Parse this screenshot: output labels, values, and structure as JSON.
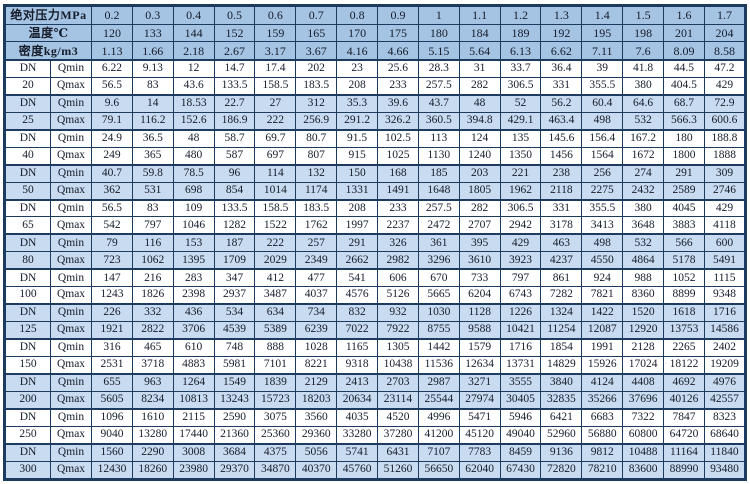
{
  "colors": {
    "header_bg": "#a5c3e2",
    "stripe_bg": "#c9dbf0",
    "row_bg": "#ffffff",
    "border": "#1d3a5f",
    "text": "#151d2c"
  },
  "chart_data": {
    "type": "table",
    "dn_prefix": "DN",
    "qmin_label": "Qmin",
    "qmax_label": "Qmax",
    "header_rows": [
      {
        "label": "绝对压力MPa",
        "values": [
          "0.2",
          "0.3",
          "0.4",
          "0.5",
          "0.6",
          "0.7",
          "0.8",
          "0.9",
          "1",
          "1.1",
          "1.2",
          "1.3",
          "1.4",
          "1.5",
          "1.6",
          "1.7"
        ]
      },
      {
        "label": "温度℃",
        "values": [
          "120",
          "133",
          "144",
          "152",
          "159",
          "165",
          "170",
          "175",
          "180",
          "184",
          "189",
          "192",
          "195",
          "198",
          "201",
          "204"
        ]
      },
      {
        "label": "密度kg/m3",
        "values": [
          "1.13",
          "1.66",
          "2.18",
          "2.67",
          "3.17",
          "3.67",
          "4.16",
          "4.66",
          "5.15",
          "5.64",
          "6.13",
          "6.62",
          "7.11",
          "7.6",
          "8.09",
          "8.58"
        ]
      }
    ],
    "row_groups": [
      {
        "dn": "20",
        "qmin": [
          "6.22",
          "9.13",
          "12",
          "14.7",
          "17.4",
          "202",
          "23",
          "25.6",
          "28.3",
          "31",
          "33.7",
          "36.4",
          "39",
          "41.8",
          "44.5",
          "47.2"
        ],
        "qmax": [
          "56.5",
          "83",
          "43.6",
          "133.5",
          "158.5",
          "183.5",
          "208",
          "233",
          "257.5",
          "282",
          "306.5",
          "331",
          "355.5",
          "380",
          "404.5",
          "429"
        ]
      },
      {
        "dn": "25",
        "qmin": [
          "9.6",
          "14",
          "18.53",
          "22.7",
          "27",
          "312",
          "35.3",
          "39.6",
          "43.7",
          "48",
          "52",
          "56.2",
          "60.4",
          "64.6",
          "68.7",
          "72.9"
        ],
        "qmax": [
          "79.1",
          "116.2",
          "152.6",
          "186.9",
          "222",
          "256.9",
          "291.2",
          "326.2",
          "360.5",
          "394.8",
          "429.1",
          "463.4",
          "498",
          "532",
          "566.3",
          "600.6"
        ]
      },
      {
        "dn": "40",
        "qmin": [
          "24.9",
          "36.5",
          "48",
          "58.7",
          "69.7",
          "80.7",
          "91.5",
          "102.5",
          "113",
          "124",
          "135",
          "145.6",
          "156.4",
          "167.2",
          "180",
          "188.8"
        ],
        "qmax": [
          "249",
          "365",
          "480",
          "587",
          "697",
          "807",
          "915",
          "1025",
          "1130",
          "1240",
          "1350",
          "1456",
          "1564",
          "1672",
          "1800",
          "1888"
        ]
      },
      {
        "dn": "50",
        "qmin": [
          "40.7",
          "59.8",
          "78.5",
          "96",
          "114",
          "132",
          "150",
          "168",
          "185",
          "203",
          "221",
          "238",
          "256",
          "274",
          "291",
          "309"
        ],
        "qmax": [
          "362",
          "531",
          "698",
          "854",
          "1014",
          "1174",
          "1331",
          "1491",
          "1648",
          "1805",
          "1962",
          "2118",
          "2275",
          "2432",
          "2589",
          "2746"
        ]
      },
      {
        "dn": "65",
        "qmin": [
          "56.5",
          "83",
          "109",
          "133.5",
          "158.5",
          "183.5",
          "208",
          "233",
          "257.5",
          "282",
          "306.5",
          "331",
          "355.5",
          "380",
          "4045",
          "429"
        ],
        "qmax": [
          "542",
          "797",
          "1046",
          "1282",
          "1522",
          "1762",
          "1997",
          "2237",
          "2472",
          "2707",
          "2942",
          "3178",
          "3413",
          "3648",
          "3883",
          "4118"
        ]
      },
      {
        "dn": "80",
        "qmin": [
          "79",
          "116",
          "153",
          "187",
          "222",
          "257",
          "291",
          "326",
          "361",
          "395",
          "429",
          "463",
          "498",
          "532",
          "566",
          "600"
        ],
        "qmax": [
          "723",
          "1062",
          "1395",
          "1709",
          "2029",
          "2349",
          "2662",
          "2982",
          "3296",
          "3610",
          "3923",
          "4237",
          "4550",
          "4864",
          "5178",
          "5491"
        ]
      },
      {
        "dn": "100",
        "qmin": [
          "147",
          "216",
          "283",
          "347",
          "412",
          "477",
          "541",
          "606",
          "670",
          "733",
          "797",
          "861",
          "924",
          "988",
          "1052",
          "1115"
        ],
        "qmax": [
          "1243",
          "1826",
          "2398",
          "2937",
          "3487",
          "4037",
          "4576",
          "5126",
          "5665",
          "6204",
          "6743",
          "7282",
          "7821",
          "8360",
          "8899",
          "9348"
        ]
      },
      {
        "dn": "125",
        "qmin": [
          "226",
          "332",
          "436",
          "534",
          "634",
          "734",
          "832",
          "932",
          "1030",
          "1128",
          "1226",
          "1324",
          "1422",
          "1520",
          "1618",
          "1716"
        ],
        "qmax": [
          "1921",
          "2822",
          "3706",
          "4539",
          "5389",
          "6239",
          "7022",
          "7922",
          "8755",
          "9588",
          "10421",
          "11254",
          "12087",
          "12920",
          "13753",
          "14586"
        ]
      },
      {
        "dn": "150",
        "qmin": [
          "316",
          "465",
          "610",
          "748",
          "888",
          "1028",
          "1165",
          "1305",
          "1442",
          "1579",
          "1716",
          "1854",
          "1991",
          "2128",
          "2265",
          "2402"
        ],
        "qmax": [
          "2531",
          "3718",
          "4883",
          "5981",
          "7101",
          "8221",
          "9318",
          "10438",
          "11536",
          "12634",
          "13731",
          "14829",
          "15926",
          "17024",
          "18122",
          "19209"
        ]
      },
      {
        "dn": "200",
        "qmin": [
          "655",
          "963",
          "1264",
          "1549",
          "1839",
          "2129",
          "2413",
          "2703",
          "2987",
          "3271",
          "3555",
          "3840",
          "4124",
          "4408",
          "4692",
          "4976"
        ],
        "qmax": [
          "5605",
          "8234",
          "10813",
          "13243",
          "15723",
          "18203",
          "20634",
          "23114",
          "25544",
          "27974",
          "30405",
          "32835",
          "35266",
          "37696",
          "40126",
          "42557"
        ]
      },
      {
        "dn": "250",
        "qmin": [
          "1096",
          "1610",
          "2115",
          "2590",
          "3075",
          "3560",
          "4035",
          "4520",
          "4996",
          "5471",
          "5946",
          "6421",
          "6683",
          "7322",
          "7847",
          "8323"
        ],
        "qmax": [
          "9040",
          "13280",
          "17440",
          "21360",
          "25360",
          "29360",
          "33280",
          "37280",
          "41200",
          "45120",
          "49040",
          "52960",
          "56880",
          "60800",
          "64720",
          "68640"
        ]
      },
      {
        "dn": "300",
        "qmin": [
          "1560",
          "2290",
          "3008",
          "3684",
          "4375",
          "5056",
          "5741",
          "6431",
          "7107",
          "7783",
          "8459",
          "9136",
          "9812",
          "10488",
          "11164",
          "11840"
        ],
        "qmax": [
          "12430",
          "18260",
          "23980",
          "29370",
          "34870",
          "40370",
          "45760",
          "51260",
          "56650",
          "62040",
          "67430",
          "72820",
          "78210",
          "83600",
          "88990",
          "93480"
        ]
      }
    ]
  }
}
